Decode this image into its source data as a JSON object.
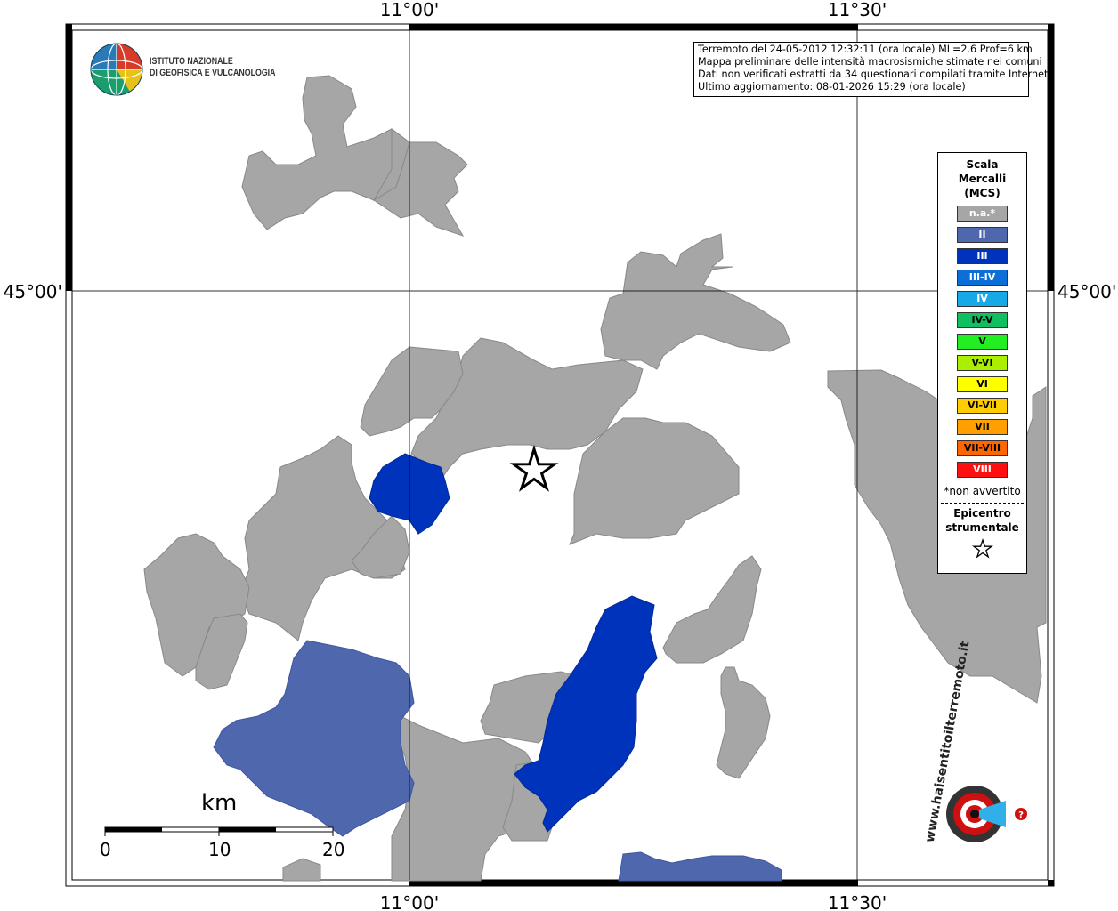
{
  "map": {
    "coord_labels": {
      "top_left_lon": "11°00'",
      "top_right_lon": "11°30'",
      "bottom_left_lon": "11°00'",
      "bottom_right_lon": "11°30'",
      "left_lat": "45°00'",
      "right_lat": "45°00'"
    }
  },
  "info_box": {
    "line1": "Terremoto del 24-05-2012 12:32:11 (ora locale) ML=2.6 Prof=6 km",
    "line2": "Mappa preliminare delle intensità macrosismiche stimate nei comuni",
    "line3": "Dati non verificati estratti da 34 questionari compilati tramite Internet.",
    "line4": "Ultimo aggiornamento: 08-01-2026 15:29 (ora locale)"
  },
  "logo": {
    "line1": "ISTITUTO NAZIONALE",
    "line2": "DI GEOFISICA E VULCANOLOGIA"
  },
  "legend": {
    "title_line1": "Scala",
    "title_line2": "Mercalli",
    "title_line3": "(MCS)",
    "items": [
      {
        "label": "n.a.*",
        "color": "#a6a6a6"
      },
      {
        "label": "II",
        "color": "#4f67ad"
      },
      {
        "label": "III",
        "color": "#0033bb"
      },
      {
        "label": "III-IV",
        "color": "#0a70d8"
      },
      {
        "label": "IV",
        "color": "#17a8e8"
      },
      {
        "label": "IV-V",
        "color": "#10c060"
      },
      {
        "label": "V",
        "color": "#22ee22"
      },
      {
        "label": "V-VI",
        "color": "#aaee00"
      },
      {
        "label": "VI",
        "color": "#ffff00"
      },
      {
        "label": "VI-VII",
        "color": "#ffcc00"
      },
      {
        "label": "VII",
        "color": "#ffa000"
      },
      {
        "label": "VII-VIII",
        "color": "#ff6600"
      },
      {
        "label": "VIII",
        "color": "#ff1010"
      }
    ],
    "note": "*non avvertito",
    "epicenter_line1": "Epicentro",
    "epicenter_line2": "strumentale"
  },
  "scale_bar": {
    "unit": "km",
    "ticks": [
      "0",
      "10",
      "20"
    ]
  },
  "colors": {
    "na": "#a6a6a6",
    "II": "#4f67ad",
    "III": "#0033bb"
  },
  "website_logo": {
    "text": "www.haisentitoilterremoto.it"
  }
}
